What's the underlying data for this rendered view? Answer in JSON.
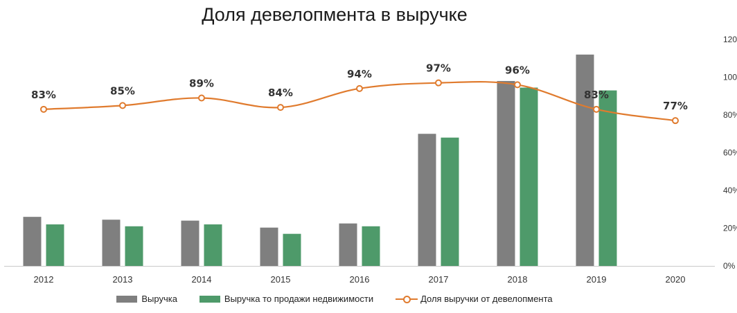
{
  "chart_data": {
    "type": "bar",
    "title": "Доля девелопмента в выручке",
    "categories": [
      "2012",
      "2013",
      "2014",
      "2015",
      "2016",
      "2017",
      "2018",
      "2019",
      "2020"
    ],
    "series": [
      {
        "name": "Выручка",
        "kind": "bar",
        "color": "#7f7f7f",
        "values": [
          26,
          24.5,
          24,
          20.3,
          22.5,
          70,
          98,
          112,
          null
        ]
      },
      {
        "name": "Выручка то продажи недвижимости",
        "kind": "bar",
        "color": "#4e9a6a",
        "values": [
          22,
          21,
          22,
          17,
          21,
          68,
          94.5,
          93,
          null
        ]
      },
      {
        "name": "Доля выручки от девелопмента",
        "kind": "line",
        "color": "#e07b2e",
        "axis": "right",
        "values": [
          83,
          85,
          89,
          84,
          94,
          97,
          96,
          83,
          77
        ],
        "labels": [
          "83%",
          "85%",
          "89%",
          "84%",
          "94%",
          "97%",
          "96%",
          "83%",
          "77%"
        ]
      }
    ],
    "y_right": {
      "ticks": [
        "0%",
        "20%",
        "40%",
        "60%",
        "80%",
        "100%",
        "120%"
      ],
      "range": [
        0,
        120
      ]
    },
    "grid": false,
    "legend_position": "bottom"
  }
}
